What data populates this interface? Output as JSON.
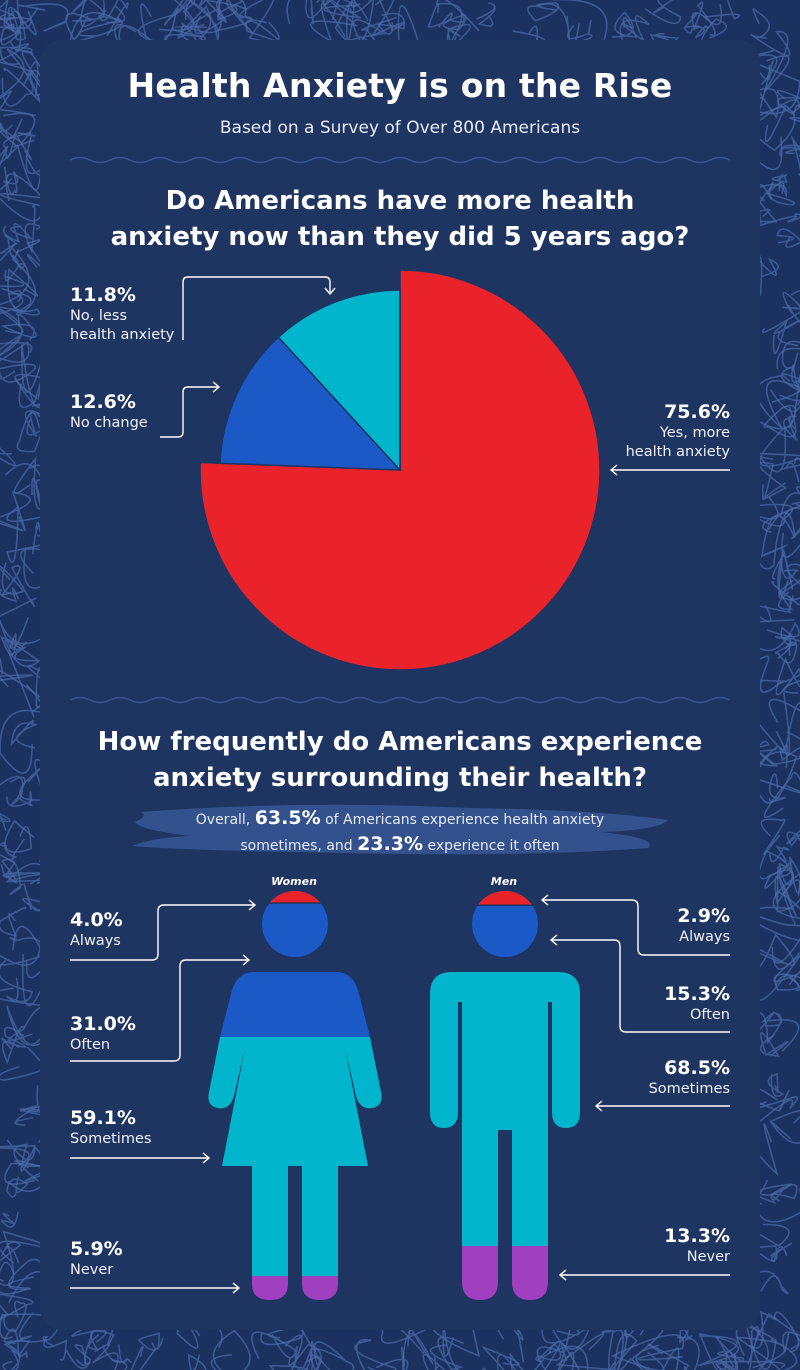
{
  "header": {
    "title": "Health Anxiety is on the Rise",
    "subtitle": "Based on a Survey of Over 800 Americans"
  },
  "colors": {
    "background": "#1b3260",
    "card": "#1e3562",
    "red": "#ea232b",
    "blue": "#1b59c6",
    "cyan": "#00b5cc",
    "purple": "#a040c0"
  },
  "section1": {
    "question_line1": "Do Americans have more health",
    "question_line2": "anxiety now than they did 5 years ago?"
  },
  "section2": {
    "question_line1": "How frequently do Americans experience",
    "question_line2": "anxiety surrounding their health?",
    "overall": {
      "text1": "Overall, ",
      "value1": "63.5%",
      "text2": " of Americans experience health anxiety",
      "text3": "sometimes, and ",
      "value2": "23.3%",
      "text4": " experience it often"
    }
  },
  "chart_data": [
    {
      "type": "pie",
      "title": "Do Americans have more health anxiety now than they did 5 years ago?",
      "slices": [
        {
          "label_line1": "Yes, more",
          "label_line2": "health anxiety",
          "value": 75.6,
          "value_label": "75.6%",
          "color": "#ea232b"
        },
        {
          "label_line1": "No change",
          "label_line2": "",
          "value": 12.6,
          "value_label": "12.6%",
          "color": "#1b59c6"
        },
        {
          "label_line1": "No, less",
          "label_line2": "health anxiety",
          "value": 11.8,
          "value_label": "11.8%",
          "color": "#00b5cc"
        }
      ]
    },
    {
      "type": "bar",
      "title": "How frequently do Americans experience anxiety surrounding their health?",
      "categories": [
        "Always",
        "Often",
        "Sometimes",
        "Never"
      ],
      "series": [
        {
          "name": "Women",
          "values": [
            4.0,
            31.0,
            59.1,
            5.9
          ],
          "labels": [
            "4.0%",
            "31.0%",
            "59.1%",
            "5.9%"
          ]
        },
        {
          "name": "Men",
          "values": [
            2.9,
            15.3,
            68.5,
            13.3
          ],
          "labels": [
            "2.9%",
            "15.3%",
            "68.5%",
            "13.3%"
          ]
        }
      ],
      "colors": [
        "#ea232b",
        "#1b59c6",
        "#00b5cc",
        "#a040c0"
      ]
    }
  ]
}
